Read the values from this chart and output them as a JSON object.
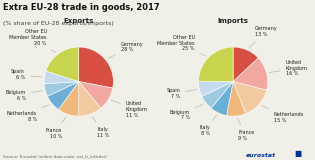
{
  "title": "Extra EU-28 trade in goods, 2017",
  "subtitle": "(% share of EU-28 exports/imports)",
  "source": "Source: Eurostat (online data code: ext_lt_inttrdst)",
  "exports": {
    "title": "Exports",
    "labels": [
      "Germany",
      "United\nKingdom",
      "Italy",
      "France",
      "Netherlands",
      "Belgium",
      "Spain",
      "Other EU\nMember States"
    ],
    "values": [
      28,
      11,
      11,
      10,
      8,
      6,
      6,
      20
    ],
    "colors": [
      "#d94f43",
      "#f2a8a0",
      "#f2c9a0",
      "#f0b87a",
      "#6baed6",
      "#9ecae1",
      "#c6dbef",
      "#c8d44e"
    ]
  },
  "imports": {
    "title": "Imports",
    "labels": [
      "Germany",
      "United\nKingdom",
      "Netherlands",
      "France",
      "Italy",
      "Belgium",
      "Spain",
      "Other EU\nMember States"
    ],
    "values": [
      13,
      16,
      15,
      9,
      8,
      7,
      7,
      25
    ],
    "colors": [
      "#d94f43",
      "#f2a8a0",
      "#f2c9a0",
      "#f0b87a",
      "#6baed6",
      "#9ecae1",
      "#c6dbef",
      "#c8d44e"
    ]
  },
  "bg_color": "#f0f0e8",
  "title_fontsize": 6.0,
  "subtitle_fontsize": 4.5,
  "pie_title_fontsize": 5.0,
  "pie_label_fontsize": 3.5,
  "source_fontsize": 3.0,
  "eurostat_fontsize": 4.5
}
